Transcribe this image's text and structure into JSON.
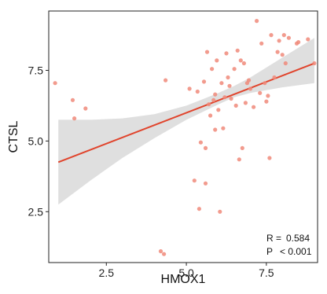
{
  "chart_data": {
    "type": "scatter",
    "xlabel": "HMOX1",
    "ylabel": "CTSL",
    "xlim": [
      0.7,
      9.1
    ],
    "ylim": [
      0.7,
      9.6
    ],
    "xticks": [
      2.5,
      5.0,
      7.5
    ],
    "xtick_labels": [
      "2.5",
      "5.0",
      "7.5"
    ],
    "yticks": [
      2.5,
      5.0,
      7.5
    ],
    "ytick_labels": [
      "2.5",
      "5.0",
      "7.5"
    ],
    "grid": false,
    "legend": "none",
    "point_color": "#f08a7a",
    "line_color": "#e0442c",
    "band_color": "#d9d9d9",
    "points": [
      {
        "x": 0.9,
        "y": 7.05
      },
      {
        "x": 1.45,
        "y": 6.45
      },
      {
        "x": 1.85,
        "y": 6.15
      },
      {
        "x": 1.5,
        "y": 5.8
      },
      {
        "x": 4.2,
        "y": 1.1
      },
      {
        "x": 4.3,
        "y": 1.0
      },
      {
        "x": 4.35,
        "y": 7.15
      },
      {
        "x": 5.1,
        "y": 6.85
      },
      {
        "x": 5.25,
        "y": 3.6
      },
      {
        "x": 5.35,
        "y": 6.75
      },
      {
        "x": 5.4,
        "y": 2.6
      },
      {
        "x": 5.45,
        "y": 4.95
      },
      {
        "x": 5.55,
        "y": 7.1
      },
      {
        "x": 5.6,
        "y": 3.5
      },
      {
        "x": 5.6,
        "y": 4.75
      },
      {
        "x": 5.65,
        "y": 8.15
      },
      {
        "x": 5.7,
        "y": 6.3
      },
      {
        "x": 5.75,
        "y": 5.9
      },
      {
        "x": 5.8,
        "y": 7.55
      },
      {
        "x": 5.85,
        "y": 6.45
      },
      {
        "x": 5.9,
        "y": 5.4
      },
      {
        "x": 5.9,
        "y": 6.65
      },
      {
        "x": 5.95,
        "y": 7.85
      },
      {
        "x": 6.0,
        "y": 6.1
      },
      {
        "x": 6.05,
        "y": 2.5
      },
      {
        "x": 6.1,
        "y": 7.05
      },
      {
        "x": 6.15,
        "y": 5.45
      },
      {
        "x": 6.2,
        "y": 6.55
      },
      {
        "x": 6.25,
        "y": 8.1
      },
      {
        "x": 6.3,
        "y": 7.25
      },
      {
        "x": 6.35,
        "y": 6.95
      },
      {
        "x": 6.4,
        "y": 6.5
      },
      {
        "x": 6.5,
        "y": 7.55
      },
      {
        "x": 6.55,
        "y": 6.25
      },
      {
        "x": 6.6,
        "y": 8.2
      },
      {
        "x": 6.65,
        "y": 4.35
      },
      {
        "x": 6.7,
        "y": 7.85
      },
      {
        "x": 6.75,
        "y": 4.75
      },
      {
        "x": 6.8,
        "y": 7.75
      },
      {
        "x": 6.85,
        "y": 6.35
      },
      {
        "x": 6.9,
        "y": 7.05
      },
      {
        "x": 6.95,
        "y": 7.15
      },
      {
        "x": 7.0,
        "y": 6.85
      },
      {
        "x": 7.1,
        "y": 6.2
      },
      {
        "x": 7.2,
        "y": 9.25
      },
      {
        "x": 7.3,
        "y": 6.7
      },
      {
        "x": 7.35,
        "y": 8.45
      },
      {
        "x": 7.45,
        "y": 7.05
      },
      {
        "x": 7.5,
        "y": 6.4
      },
      {
        "x": 7.55,
        "y": 6.6
      },
      {
        "x": 7.6,
        "y": 4.4
      },
      {
        "x": 7.65,
        "y": 8.75
      },
      {
        "x": 7.75,
        "y": 7.25
      },
      {
        "x": 7.85,
        "y": 8.15
      },
      {
        "x": 7.9,
        "y": 8.55
      },
      {
        "x": 8.0,
        "y": 8.05
      },
      {
        "x": 8.05,
        "y": 8.75
      },
      {
        "x": 8.1,
        "y": 7.75
      },
      {
        "x": 8.2,
        "y": 8.65
      },
      {
        "x": 8.45,
        "y": 8.45
      },
      {
        "x": 8.5,
        "y": 8.5
      },
      {
        "x": 8.8,
        "y": 8.6
      },
      {
        "x": 9.0,
        "y": 7.75
      }
    ],
    "fit_line": {
      "x": [
        1.0,
        9.0
      ],
      "y": [
        4.25,
        7.75
      ]
    },
    "confidence_band": {
      "x": [
        1.0,
        2.0,
        3.0,
        4.0,
        5.0,
        6.0,
        6.5,
        7.0,
        8.0,
        9.0
      ],
      "lower": [
        2.75,
        3.6,
        4.4,
        5.1,
        5.75,
        6.3,
        6.55,
        6.7,
        6.9,
        7.05
      ],
      "upper": [
        5.75,
        5.75,
        5.8,
        5.95,
        6.25,
        6.7,
        6.95,
        7.25,
        7.95,
        8.65
      ]
    },
    "annotations": [
      {
        "label": "R =",
        "value": "0.584"
      },
      {
        "label": "P",
        "value": "< 0.001"
      }
    ]
  }
}
